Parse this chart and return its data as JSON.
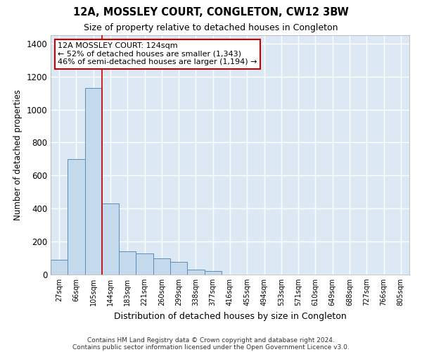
{
  "title": "12A, MOSSLEY COURT, CONGLETON, CW12 3BW",
  "subtitle": "Size of property relative to detached houses in Congleton",
  "xlabel": "Distribution of detached houses by size in Congleton",
  "ylabel": "Number of detached properties",
  "bar_color": "#c5d9ed",
  "bar_edge_color": "#5b8db8",
  "background_color": "#dce9f5",
  "grid_color": "#ffffff",
  "fig_background": "#ffffff",
  "categories": [
    "27sqm",
    "66sqm",
    "105sqm",
    "144sqm",
    "183sqm",
    "221sqm",
    "260sqm",
    "299sqm",
    "338sqm",
    "377sqm",
    "416sqm",
    "455sqm",
    "494sqm",
    "533sqm",
    "571sqm",
    "610sqm",
    "649sqm",
    "688sqm",
    "727sqm",
    "766sqm",
    "805sqm"
  ],
  "values": [
    90,
    700,
    1130,
    430,
    140,
    130,
    100,
    75,
    30,
    20,
    0,
    0,
    0,
    0,
    0,
    0,
    0,
    0,
    0,
    0,
    0
  ],
  "ylim": [
    0,
    1450
  ],
  "yticks": [
    0,
    200,
    400,
    600,
    800,
    1000,
    1200,
    1400
  ],
  "property_line_x": 2.5,
  "annotation_text": "12A MOSSLEY COURT: 124sqm\n← 52% of detached houses are smaller (1,343)\n46% of semi-detached houses are larger (1,194) →",
  "annotation_box_color": "#ffffff",
  "annotation_box_edge_color": "#cc0000",
  "footer_line1": "Contains HM Land Registry data © Crown copyright and database right 2024.",
  "footer_line2": "Contains public sector information licensed under the Open Government Licence v3.0."
}
